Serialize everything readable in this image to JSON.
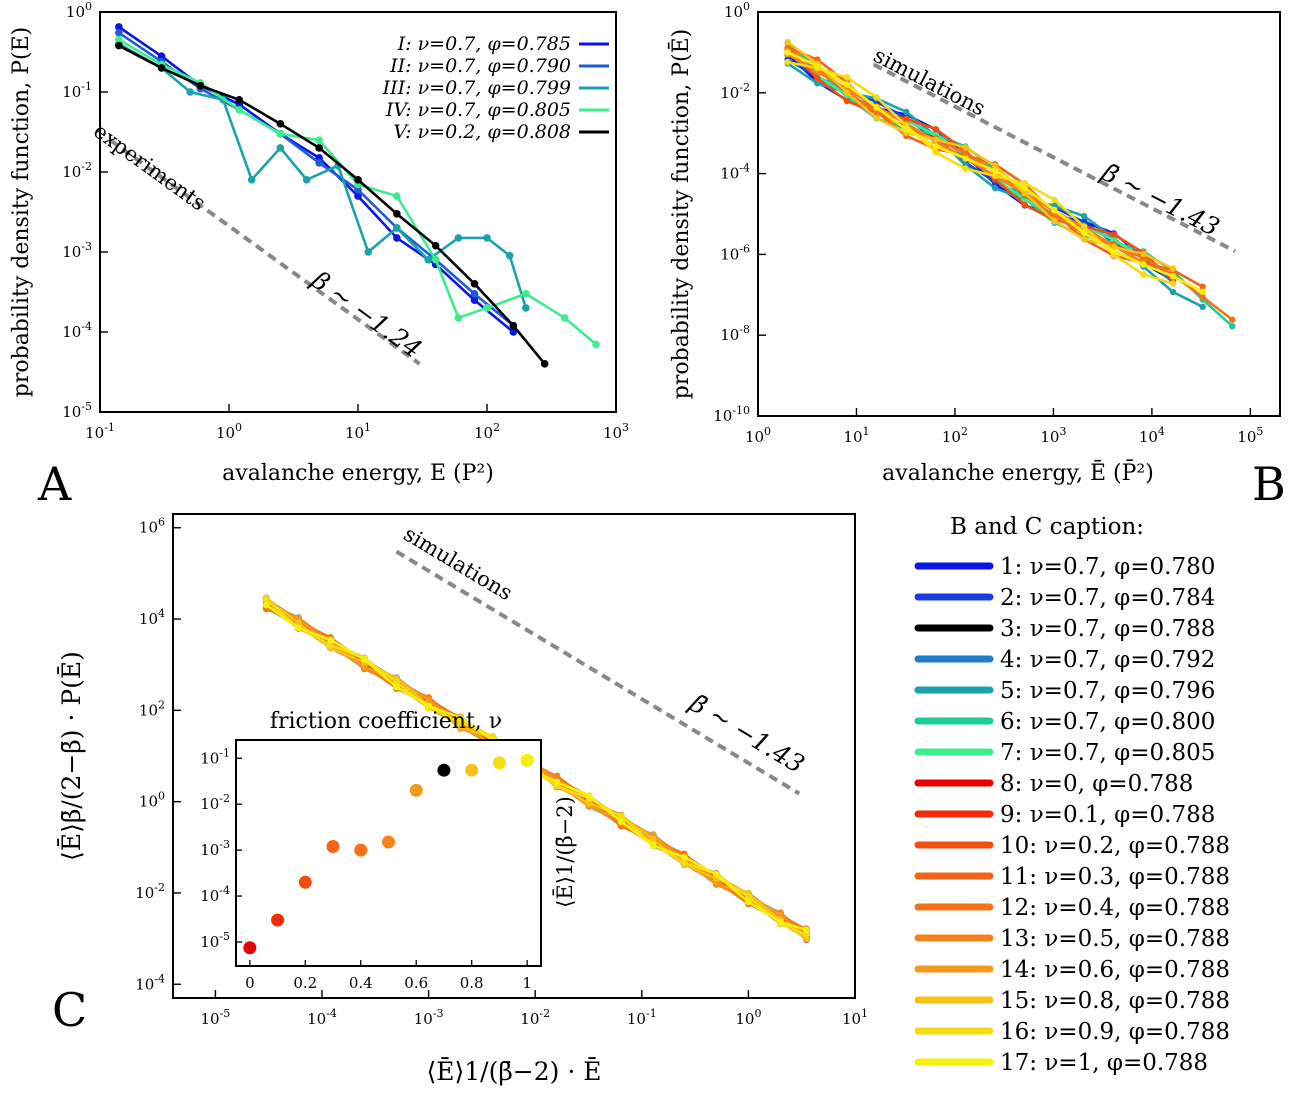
{
  "chart_data": [
    {
      "panel": "A",
      "type": "line",
      "xscale": "log",
      "yscale": "log",
      "xlim": [
        0.1,
        1000
      ],
      "ylim": [
        1e-05,
        1
      ],
      "xlabel": "avalanche energy, E (P²)",
      "ylabel": "probability density function, P(E)",
      "xticks": [
        "10-1",
        "100",
        "101",
        "102",
        "103"
      ],
      "yticks": [
        "10-5",
        "10-4",
        "10-3",
        "10-2",
        "10-1",
        "100"
      ],
      "legend_position": "top-right",
      "series": [
        {
          "name": "I: ν=0.7, φ=0.785",
          "color": "#0a14e6",
          "x": [
            0.14,
            0.3,
            0.6,
            1.2,
            2.5,
            5,
            10,
            20,
            40,
            80,
            160
          ],
          "y": [
            0.65,
            0.28,
            0.12,
            0.07,
            0.03,
            0.015,
            0.005,
            0.0015,
            0.0007,
            0.00025,
            0.0001
          ]
        },
        {
          "name": "II: ν=0.7, φ=0.790",
          "color": "#1d5ed8",
          "x": [
            0.14,
            0.3,
            0.6,
            1.2,
            2.5,
            5,
            10,
            20,
            40,
            80,
            160
          ],
          "y": [
            0.55,
            0.24,
            0.11,
            0.06,
            0.03,
            0.013,
            0.006,
            0.002,
            0.0008,
            0.0003,
            0.00012
          ]
        },
        {
          "name": "III: ν=0.7, φ=0.799",
          "color": "#1aa3ad",
          "x": [
            0.14,
            0.3,
            0.5,
            0.9,
            1.5,
            2.5,
            4,
            7,
            12,
            20,
            35,
            60,
            100,
            150,
            200
          ],
          "y": [
            0.4,
            0.2,
            0.1,
            0.08,
            0.008,
            0.02,
            0.008,
            0.012,
            0.001,
            0.002,
            0.0008,
            0.0015,
            0.0015,
            0.0009,
            0.0002
          ]
        },
        {
          "name": "IV: ν=0.7, φ=0.805",
          "color": "#3ded8c",
          "x": [
            0.14,
            0.3,
            0.6,
            1.2,
            2.5,
            5,
            10,
            20,
            40,
            60,
            100,
            200,
            400,
            700
          ],
          "y": [
            0.45,
            0.22,
            0.13,
            0.06,
            0.03,
            0.025,
            0.007,
            0.005,
            0.0008,
            0.00015,
            0.0002,
            0.0003,
            0.00015,
            7e-05
          ]
        },
        {
          "name": "V: ν=0.2, φ=0.808",
          "color": "#000000",
          "x": [
            0.14,
            0.3,
            0.6,
            1.2,
            2.5,
            5,
            10,
            20,
            40,
            80,
            160,
            280
          ],
          "y": [
            0.38,
            0.2,
            0.12,
            0.08,
            0.04,
            0.02,
            0.008,
            0.003,
            0.0012,
            0.0004,
            0.00012,
            4e-05
          ]
        }
      ],
      "guide": {
        "label": "experiments",
        "exponent_label": "β ∼ −1.24",
        "x": [
          0.12,
          30
        ],
        "y": [
          0.025,
          4e-05
        ]
      }
    },
    {
      "panel": "B",
      "type": "line",
      "xscale": "log",
      "yscale": "log",
      "xlim": [
        1,
        200000
      ],
      "ylim": [
        1e-10,
        1
      ],
      "xlabel": "avalanche energy, Ē (P̄²)",
      "ylabel": "probability density function, P(Ē)",
      "xticks": [
        "100",
        "101",
        "102",
        "103",
        "104",
        "105"
      ],
      "yticks": [
        "10-10",
        "10-8",
        "10-6",
        "10-4",
        "10-2",
        "100"
      ],
      "guide": {
        "label": "simulations",
        "exponent_label": "β̄ ∼ −1.43",
        "x": [
          15,
          70000
        ],
        "y": [
          0.05,
          1.2e-06
        ]
      }
    },
    {
      "panel": "C",
      "type": "line",
      "xscale": "log",
      "yscale": "log",
      "xlim": [
        4e-06,
        10
      ],
      "ylim": [
        5e-05,
        2000000
      ],
      "xlabel": "⟨Ē⟩1/(β̄−2) · Ē",
      "ylabel": "⟨Ē⟩β̄/(2−β̄) · P(Ē)",
      "xticks": [
        "10-5",
        "10-4",
        "10-3",
        "10-2",
        "10-1",
        "100",
        "101"
      ],
      "yticks": [
        "10-4",
        "10-2",
        "100",
        "102",
        "104",
        "106"
      ],
      "guide": {
        "label": "simulations",
        "exponent_label": "β̄ ∼ −1.43",
        "x": [
          0.0005,
          3
        ],
        "y": [
          300000,
          1.5
        ]
      },
      "inset": {
        "type": "scatter",
        "title": "friction coefficient, ν",
        "ylabel": "⟨Ē⟩1/(β̄−2)",
        "xlim": [
          -0.05,
          1.05
        ],
        "ylim": [
          3e-06,
          0.25
        ],
        "xticks": [
          "0",
          "0.2",
          "0.4",
          "0.6",
          "0.8",
          "1"
        ],
        "yticks": [
          "10-5",
          "10-4",
          "10-3",
          "10-2",
          "10-1"
        ],
        "x": [
          0,
          0.1,
          0.2,
          0.3,
          0.4,
          0.5,
          0.6,
          0.7,
          0.8,
          0.9,
          1
        ],
        "y": [
          7.5e-06,
          3e-05,
          0.0002,
          0.0012,
          0.001,
          0.0015,
          0.02,
          0.055,
          0.055,
          0.08,
          0.09
        ],
        "colors": [
          "#e60000",
          "#f52a0a",
          "#f54d10",
          "#f56315",
          "#f57218",
          "#f5821a",
          "#f59a1c",
          "#000000",
          "#f5c315",
          "#f5dc10",
          "#f5f00a"
        ]
      }
    }
  ],
  "caption": {
    "title": "B and C caption:",
    "items": [
      {
        "label": "1: ν=0.7, φ=0.780",
        "color": "#0a14e6"
      },
      {
        "label": "2: ν=0.7, φ=0.784",
        "color": "#1a3ee0"
      },
      {
        "label": "3: ν=0.7, φ=0.788",
        "color": "#000000"
      },
      {
        "label": "4: ν=0.7, φ=0.792",
        "color": "#1f7ac8"
      },
      {
        "label": "5: ν=0.7, φ=0.796",
        "color": "#1aa3ad"
      },
      {
        "label": "6: ν=0.7, φ=0.800",
        "color": "#1ecc9a"
      },
      {
        "label": "7: ν=0.7, φ=0.805",
        "color": "#3ded8c"
      },
      {
        "label": "8: ν=0, φ=0.788",
        "color": "#e60000"
      },
      {
        "label": "9: ν=0.1, φ=0.788",
        "color": "#f52a0a"
      },
      {
        "label": "10: ν=0.2, φ=0.788",
        "color": "#f54d10"
      },
      {
        "label": "11: ν=0.3, φ=0.788",
        "color": "#f56315"
      },
      {
        "label": "12: ν=0.4, φ=0.788",
        "color": "#f57218"
      },
      {
        "label": "13: ν=0.5, φ=0.788",
        "color": "#f5821a"
      },
      {
        "label": "14: ν=0.6, φ=0.788",
        "color": "#f59a1c"
      },
      {
        "label": "15: ν=0.8, φ=0.788",
        "color": "#f5c315"
      },
      {
        "label": "16: ν=0.9, φ=0.788",
        "color": "#f5dc10"
      },
      {
        "label": "17: ν=1, φ=0.788",
        "color": "#f5f00a"
      }
    ]
  },
  "panel_labels": {
    "a": "A",
    "b": "B",
    "c": "C"
  }
}
